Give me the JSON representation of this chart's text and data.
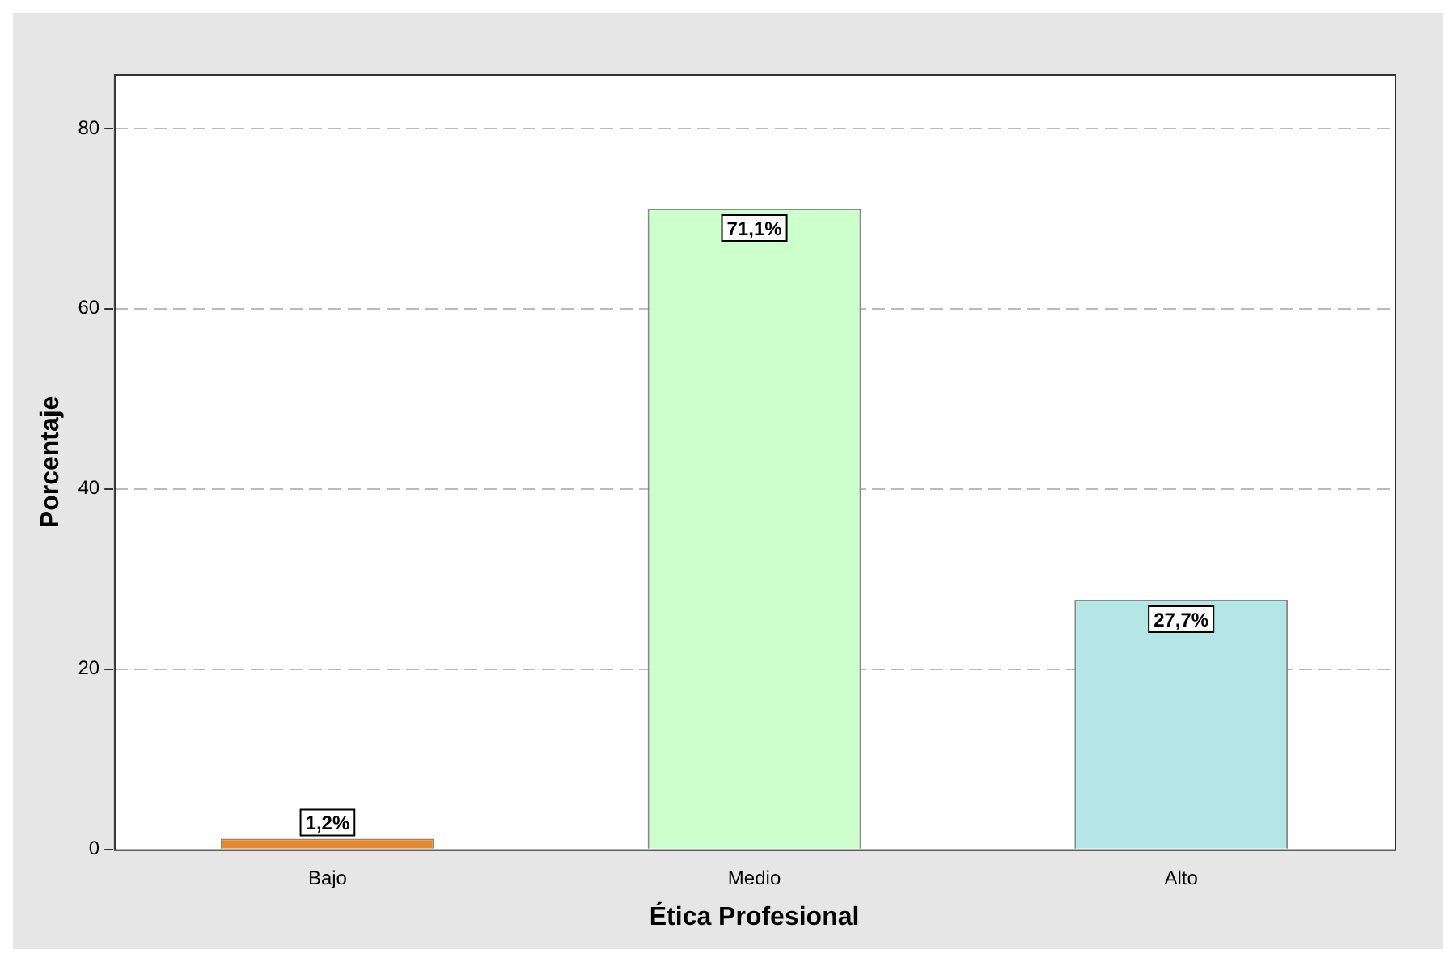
{
  "chart_data": {
    "type": "bar",
    "xlabel": "Ética Profesional",
    "ylabel": "Porcentaje",
    "categories": [
      "Bajo",
      "Medio",
      "Alto"
    ],
    "values": [
      1.2,
      71.1,
      27.7
    ],
    "colors": [
      "#e8892b",
      "#ccffcc",
      "#b4e6e6"
    ],
    "value_labels": [
      "1,2%",
      "71,1%",
      "27,7%"
    ],
    "ylim": [
      0,
      86
    ],
    "yticks": [
      0,
      20,
      40,
      60,
      80
    ],
    "grid": "y",
    "legend": false
  }
}
